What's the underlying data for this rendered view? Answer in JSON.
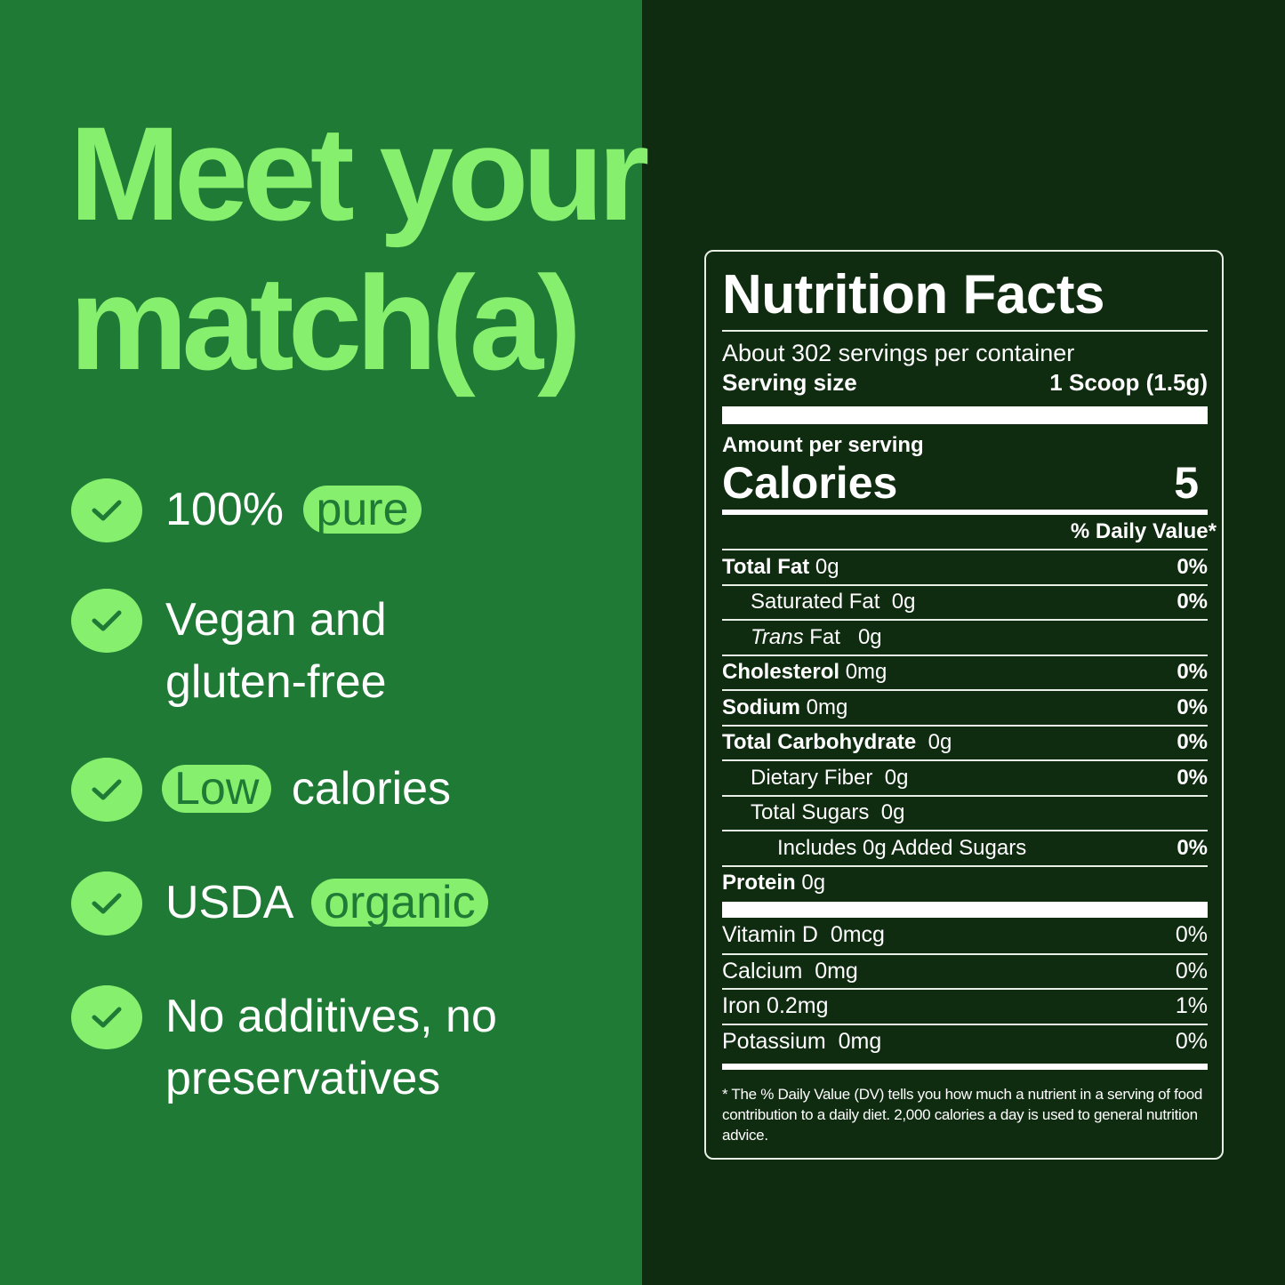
{
  "headline": {
    "line1": "Meet your",
    "line2": "match(a)"
  },
  "colors": {
    "left_bg": "#1f7a35",
    "right_bg": "#0f2b10",
    "accent": "#86f06e"
  },
  "features": [
    {
      "icon": "check-icon",
      "text": "100%",
      "pill": "pure"
    },
    {
      "icon": "check-icon",
      "line1": "Vegan and",
      "line2": "gluten-free"
    },
    {
      "icon": "check-icon",
      "pill": "Low",
      "text": "calories"
    },
    {
      "icon": "check-icon",
      "text": "USDA",
      "pill": "organic"
    },
    {
      "icon": "check-icon",
      "line1": "No additives, no",
      "line2": "preservatives"
    }
  ],
  "nutrition": {
    "title": "Nutrition Facts",
    "servings": "About 302 servings per container",
    "serving_size_label": "Serving size",
    "serving_size": "1 Scoop (1.5g)",
    "amount_per_serving": "Amount per serving",
    "calories_label": "Calories",
    "calories": "5",
    "dv_header": "% Daily Value*",
    "rows": [
      {
        "name": "Total Fat",
        "amount": "0g",
        "dv": "0%"
      },
      {
        "name": "Saturated Fat",
        "amount": "0g",
        "dv": "0%"
      },
      {
        "name_italic": "Trans",
        "name": "Fat",
        "amount": "0g"
      },
      {
        "name": "Cholesterol",
        "amount": "0mg",
        "dv": "0%"
      },
      {
        "name": "Sodium",
        "amount": "0mg",
        "dv": "0%"
      },
      {
        "name": "Total Carbohydrate",
        "amount": "0g",
        "dv": "0%"
      },
      {
        "name": "Dietary Fiber",
        "amount": "0g",
        "dv": "0%"
      },
      {
        "name": "Total Sugars",
        "amount": "0g"
      },
      {
        "name": "Includes 0g Added Sugars",
        "dv": "0%"
      },
      {
        "name": "Protein",
        "amount": "0g"
      }
    ],
    "vitamins": [
      {
        "name": "Vitamin D",
        "amount": "0mcg",
        "dv": "0%"
      },
      {
        "name": "Calcium",
        "amount": "0mg",
        "dv": "0%"
      },
      {
        "name": "Iron",
        "amount": "0.2mg",
        "dv": "1%"
      },
      {
        "name": "Potassium",
        "amount": "0mg",
        "dv": "0%"
      }
    ],
    "footnote": "* The % Daily Value (DV) tells you how much a nutrient in a serving of food contribution to a daily diet. 2,000 calories a day is used to general nutrition advice."
  }
}
